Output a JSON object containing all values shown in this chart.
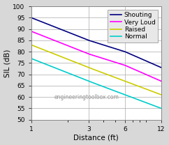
{
  "title": "",
  "xlabel": "Distance (ft)",
  "ylabel": "SIL (dB)",
  "watermark": "engineeringtoolbox.com",
  "x_ticks": [
    1,
    3,
    6,
    12
  ],
  "ylim": [
    50,
    100
  ],
  "yticks": [
    50,
    55,
    60,
    65,
    70,
    75,
    80,
    85,
    90,
    95,
    100
  ],
  "lines": [
    {
      "label": "Shouting",
      "color": "#000080",
      "x": [
        1,
        3,
        6,
        12
      ],
      "y": [
        95,
        85,
        80,
        73
      ]
    },
    {
      "label": "Very Loud",
      "color": "#ff00ff",
      "x": [
        1,
        3,
        6,
        12
      ],
      "y": [
        89,
        79,
        74,
        67
      ]
    },
    {
      "label": "Raised",
      "color": "#cccc00",
      "x": [
        1,
        3,
        6,
        12
      ],
      "y": [
        83,
        73,
        67,
        61
      ]
    },
    {
      "label": "Normal",
      "color": "#00cccc",
      "x": [
        1,
        3,
        6,
        12
      ],
      "y": [
        77,
        67,
        61,
        55
      ]
    }
  ],
  "legend_fontsize": 6.5,
  "tick_fontsize": 6.5,
  "label_fontsize": 7.5,
  "plot_bg_color": "#ffffff",
  "fig_bg_color": "#d8d8d8",
  "grid_color": "#aaaaaa",
  "border_color": "#888888"
}
